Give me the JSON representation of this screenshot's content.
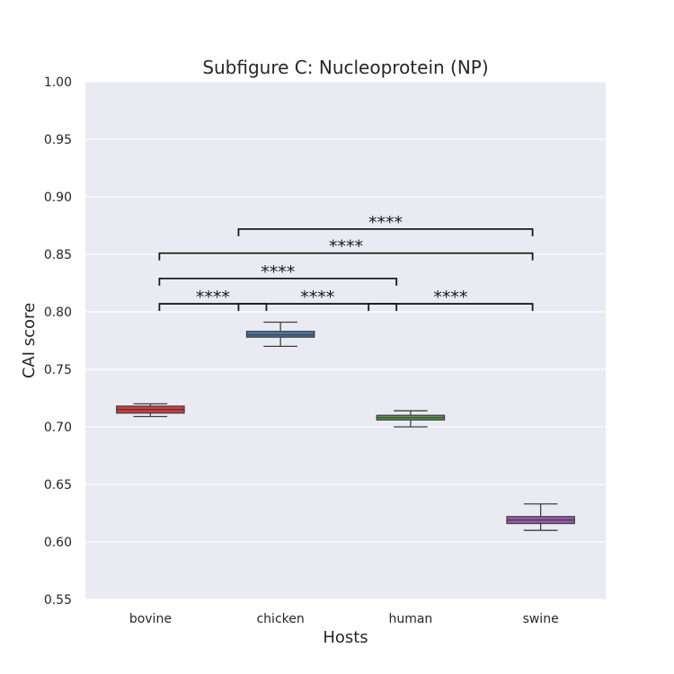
{
  "chart_data": {
    "type": "box",
    "title": "Subfigure C: Nucleoprotein (NP)",
    "xlabel": "Hosts",
    "ylabel": "CAI score",
    "ylim": [
      0.55,
      1.0
    ],
    "yticks": [
      "0.55",
      "0.60",
      "0.65",
      "0.70",
      "0.75",
      "0.80",
      "0.85",
      "0.90",
      "0.95",
      "1.00"
    ],
    "grid": true,
    "categories": [
      "bovine",
      "chicken",
      "human",
      "swine"
    ],
    "boxes": [
      {
        "category": "bovine",
        "color": "#d93a3a",
        "whisker_low": 0.709,
        "q1": 0.712,
        "median": 0.715,
        "q3": 0.718,
        "whisker_high": 0.72
      },
      {
        "category": "chicken",
        "color": "#4b76a8",
        "whisker_low": 0.77,
        "q1": 0.778,
        "median": 0.78,
        "q3": 0.783,
        "whisker_high": 0.791
      },
      {
        "category": "human",
        "color": "#5ca14e",
        "whisker_low": 0.7,
        "q1": 0.706,
        "median": 0.708,
        "q3": 0.71,
        "whisker_high": 0.714
      },
      {
        "category": "swine",
        "color": "#9b59b0",
        "whisker_low": 0.61,
        "q1": 0.616,
        "median": 0.619,
        "q3": 0.622,
        "whisker_high": 0.633
      }
    ],
    "annotations": [
      {
        "from": "bovine",
        "to": "chicken",
        "y": 0.807,
        "label": "****"
      },
      {
        "from": "chicken",
        "to": "human",
        "y": 0.807,
        "label": "****"
      },
      {
        "from": "human",
        "to": "swine",
        "y": 0.807,
        "label": "****"
      },
      {
        "from": "bovine",
        "to": "human",
        "y": 0.829,
        "label": "****"
      },
      {
        "from": "bovine",
        "to": "swine",
        "y": 0.851,
        "label": "****"
      },
      {
        "from": "chicken",
        "to": "swine",
        "y": 0.872,
        "label": "****"
      }
    ],
    "colors": {
      "background": "#eaeaf2",
      "grid": "#ffffff",
      "box_edge": "#404040"
    }
  }
}
